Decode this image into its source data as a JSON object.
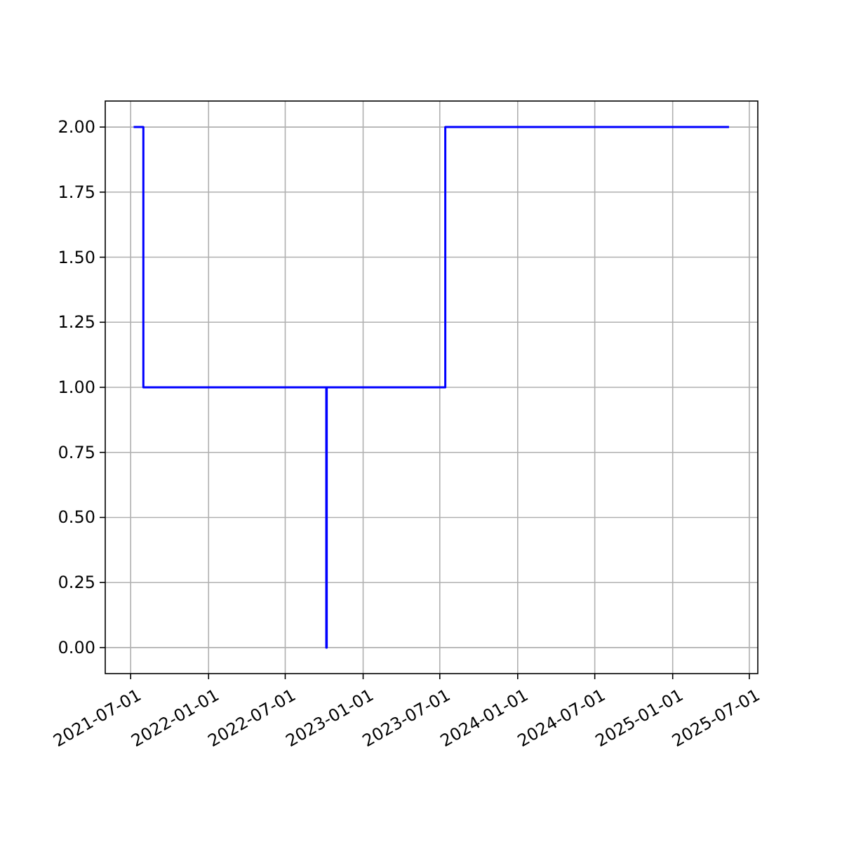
{
  "chart_data": {
    "type": "step",
    "x": [
      "2021-07-08",
      "2021-07-31",
      "2022-10-06",
      "2022-10-07",
      "2023-07-14",
      "2025-05-14"
    ],
    "series": [
      {
        "color": "#0000ff",
        "values": [
          2,
          1,
          0,
          1,
          2,
          2
        ]
      }
    ],
    "xlim": [
      "2021-05-02",
      "2025-07-21"
    ],
    "xticks": [
      {
        "value": "2021-07-01",
        "label": "2021-07-01"
      },
      {
        "value": "2022-01-01",
        "label": "2022-01-01"
      },
      {
        "value": "2022-07-01",
        "label": "2022-07-01"
      },
      {
        "value": "2023-01-01",
        "label": "2023-01-01"
      },
      {
        "value": "2023-07-01",
        "label": "2023-07-01"
      },
      {
        "value": "2024-01-01",
        "label": "2024-01-01"
      },
      {
        "value": "2024-07-01",
        "label": "2024-07-01"
      },
      {
        "value": "2025-01-01",
        "label": "2025-01-01"
      },
      {
        "value": "2025-07-01",
        "label": "2025-07-01"
      }
    ],
    "ylim": [
      -0.1,
      2.1
    ],
    "yticks": [
      {
        "value": 0,
        "label": "0.00"
      },
      {
        "value": 0.25,
        "label": "0.25"
      },
      {
        "value": 0.5,
        "label": "0.50"
      },
      {
        "value": 0.75,
        "label": "0.75"
      },
      {
        "value": 1,
        "label": "1.00"
      },
      {
        "value": 1.25,
        "label": "1.25"
      },
      {
        "value": 1.5,
        "label": "1.50"
      },
      {
        "value": 1.75,
        "label": "1.75"
      },
      {
        "value": 2,
        "label": "2.00"
      }
    ],
    "grid": true
  }
}
